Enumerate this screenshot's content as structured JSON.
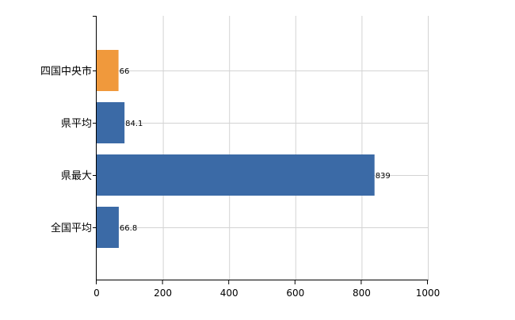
{
  "chart_data": {
    "type": "bar",
    "orientation": "horizontal",
    "categories": [
      "四国中央市",
      "県平均",
      "県最大",
      "全国平均"
    ],
    "values": [
      66,
      84.1,
      839,
      66.8
    ],
    "value_labels": [
      "66",
      "84.1",
      "839",
      "66.8"
    ],
    "xlim": [
      0,
      1000
    ],
    "xticks": [
      0,
      200,
      400,
      600,
      800,
      1000
    ],
    "xtick_labels": [
      "0",
      "200",
      "400",
      "600",
      "800",
      "1000"
    ],
    "grid": true,
    "colors": {
      "highlight": "#f0993c",
      "default": "#3b6aa6",
      "grid": "#d3d3d3",
      "axis": "#000000"
    },
    "highlight_index": 0,
    "title": "",
    "xlabel": "",
    "ylabel": ""
  }
}
